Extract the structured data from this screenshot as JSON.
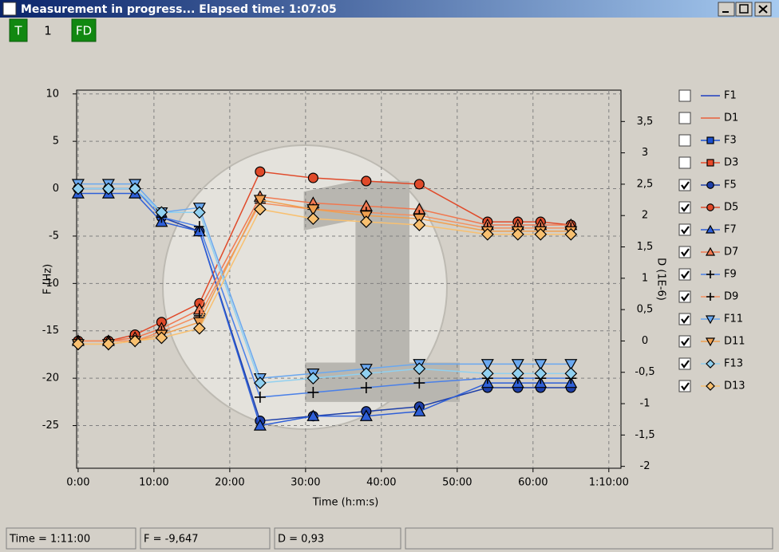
{
  "window": {
    "title": "Measurement in progress...  Elapsed time: 1:07:05"
  },
  "toolbar": {
    "buttons": [
      "T",
      "1",
      "FD"
    ]
  },
  "status": [
    "Time = 1:11:00",
    "F = -9,647",
    "D = 0,93"
  ],
  "chart_data": {
    "type": "line",
    "magnifier_label": "1",
    "x_label": "Time (h:m:s)",
    "y_label": "F (Hz)",
    "y2_label": "D (1E-6)",
    "x": [
      0,
      4,
      7.5,
      11,
      16,
      24,
      31,
      38,
      45,
      54,
      58,
      61,
      65
    ],
    "xlim": [
      -0.2,
      71.6
    ],
    "xticks": [
      {
        "value": 0,
        "label": "0:00"
      },
      {
        "value": 10,
        "label": "10:00"
      },
      {
        "value": 20,
        "label": "20:00"
      },
      {
        "value": 30,
        "label": "30:00"
      },
      {
        "value": 40,
        "label": "40:00"
      },
      {
        "value": 50,
        "label": "50:00"
      },
      {
        "value": 60,
        "label": "60:00"
      },
      {
        "value": 70,
        "label": "1:10:00"
      }
    ],
    "ylim": [
      -29.5,
      10.4
    ],
    "yticks": [
      -25,
      -20,
      -15,
      -10,
      -5,
      0,
      5,
      10
    ],
    "y2lim": [
      -2.03,
      4.0
    ],
    "y2ticks": [
      -2,
      {
        "value": -1.5,
        "label": "-1,5"
      },
      -1,
      {
        "value": -0.5,
        "label": "-0,5"
      },
      0,
      {
        "value": 0.5,
        "label": "0,5"
      },
      1,
      {
        "value": 1.5,
        "label": "1,5"
      },
      2,
      {
        "value": 2.5,
        "label": "2,5"
      },
      3,
      {
        "value": 3.5,
        "label": "3,5"
      }
    ],
    "grid": true,
    "series": [
      {
        "name": "F1",
        "color": "#1f3fbf",
        "marker": "none",
        "checked": false,
        "values": [
          null,
          null,
          null,
          null,
          null,
          null,
          null,
          null,
          null,
          null,
          null,
          null,
          null
        ]
      },
      {
        "name": "D1",
        "color": "#e8603a",
        "marker": "none",
        "checked": false,
        "axis": "y2",
        "values": [
          null,
          null,
          null,
          null,
          null,
          null,
          null,
          null,
          null,
          null,
          null,
          null,
          null
        ]
      },
      {
        "name": "F3",
        "color": "#1a4fd0",
        "marker": "square",
        "checked": false,
        "values": [
          null,
          null,
          null,
          null,
          null,
          null,
          null,
          null,
          null,
          null,
          null,
          null,
          null
        ]
      },
      {
        "name": "D3",
        "color": "#e84a2a",
        "marker": "square",
        "checked": false,
        "axis": "y2",
        "values": [
          null,
          null,
          null,
          null,
          null,
          null,
          null,
          null,
          null,
          null,
          null,
          null,
          null
        ]
      },
      {
        "name": "F5",
        "color": "#1e3fa8",
        "marker": "circle",
        "checked": true,
        "values": [
          0,
          0,
          0,
          -3,
          -4.5,
          -24.5,
          -24,
          -23.5,
          -23,
          -21,
          -21,
          -21,
          -21
        ]
      },
      {
        "name": "D5",
        "color": "#e04a2a",
        "marker": "circle",
        "checked": true,
        "axis": "y2",
        "values": [
          0,
          0,
          0.1,
          0.3,
          0.6,
          2.7,
          2.6,
          2.55,
          2.5,
          1.9,
          1.9,
          1.9,
          1.85
        ]
      },
      {
        "name": "F7",
        "color": "#2e5fd8",
        "marker": "triangle",
        "checked": true,
        "values": [
          -0.5,
          -0.5,
          -0.5,
          -3.5,
          -4.5,
          -25,
          -24,
          -24,
          -23.5,
          -20.5,
          -20.5,
          -20.5,
          -20.5
        ]
      },
      {
        "name": "D7",
        "color": "#f07850",
        "marker": "triangle",
        "checked": true,
        "axis": "y2",
        "values": [
          0,
          0,
          0.05,
          0.2,
          0.5,
          2.3,
          2.2,
          2.15,
          2.1,
          1.85,
          1.85,
          1.85,
          1.85
        ]
      },
      {
        "name": "F9",
        "color": "#4a80e8",
        "marker": "plus",
        "checked": true,
        "values": [
          0,
          0,
          0,
          -3,
          -4,
          -22,
          -21.5,
          -21,
          -20.5,
          -20,
          -20,
          -20,
          -20
        ]
      },
      {
        "name": "D9",
        "color": "#f49060",
        "marker": "plus",
        "checked": true,
        "axis": "y2",
        "values": [
          0,
          0,
          0,
          0.15,
          0.4,
          2.2,
          2.1,
          2.05,
          2.0,
          1.8,
          1.8,
          1.8,
          1.8
        ]
      },
      {
        "name": "F11",
        "color": "#6aa8f0",
        "marker": "triangle-down",
        "checked": true,
        "values": [
          0.5,
          0.5,
          0.5,
          -2.5,
          -2,
          -20,
          -19.5,
          -19,
          -18.5,
          -18.5,
          -18.5,
          -18.5,
          -18.5
        ]
      },
      {
        "name": "D11",
        "color": "#f0a050",
        "marker": "triangle-down",
        "checked": true,
        "axis": "y2",
        "values": [
          -0.05,
          -0.05,
          0,
          0.1,
          0.3,
          2.25,
          2.1,
          2.0,
          1.95,
          1.75,
          1.75,
          1.75,
          1.75
        ]
      },
      {
        "name": "F13",
        "color": "#90d0f0",
        "marker": "diamond",
        "checked": true,
        "values": [
          0,
          0,
          0,
          -2.5,
          -2.5,
          -20.5,
          -20,
          -19.5,
          -19,
          -19.5,
          -19.5,
          -19.5,
          -19.5
        ]
      },
      {
        "name": "D13",
        "color": "#f8c070",
        "marker": "diamond",
        "checked": true,
        "axis": "y2",
        "values": [
          -0.05,
          -0.05,
          0,
          0.05,
          0.2,
          2.1,
          1.95,
          1.9,
          1.85,
          1.7,
          1.7,
          1.7,
          1.7
        ]
      }
    ]
  }
}
